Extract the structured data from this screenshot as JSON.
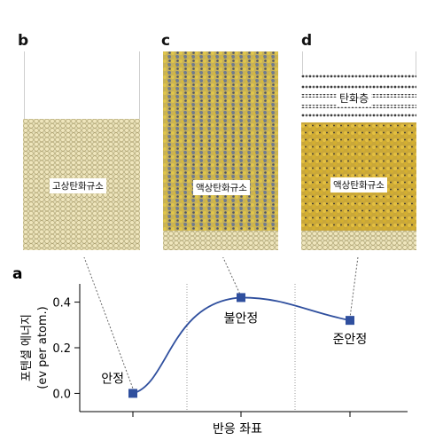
{
  "panels": {
    "b": {
      "letter": "b",
      "label": "고상탄화규소"
    },
    "c": {
      "letter": "c",
      "label": "액상탄화규소"
    },
    "d": {
      "letter": "d",
      "label": "액상탄화규소",
      "top_label": "탄화층"
    }
  },
  "chart_data": {
    "type": "line",
    "letter": "a",
    "ylabel_line1": "포텐셜 에너지",
    "ylabel_line2": "(ev per atom.)",
    "xlabel": "반응 좌표",
    "yticks": [
      "0.0",
      "0.2",
      "0.4"
    ],
    "ylim": [
      -0.08,
      0.48
    ],
    "points": [
      {
        "x": 1,
        "y": 0.0,
        "label": "안정"
      },
      {
        "x": 2,
        "y": 0.42,
        "label": "불안정"
      },
      {
        "x": 3,
        "y": 0.32,
        "label": "준안정"
      }
    ],
    "marker_color": "#2f4f9e",
    "line_color": "#2f4f9e"
  }
}
